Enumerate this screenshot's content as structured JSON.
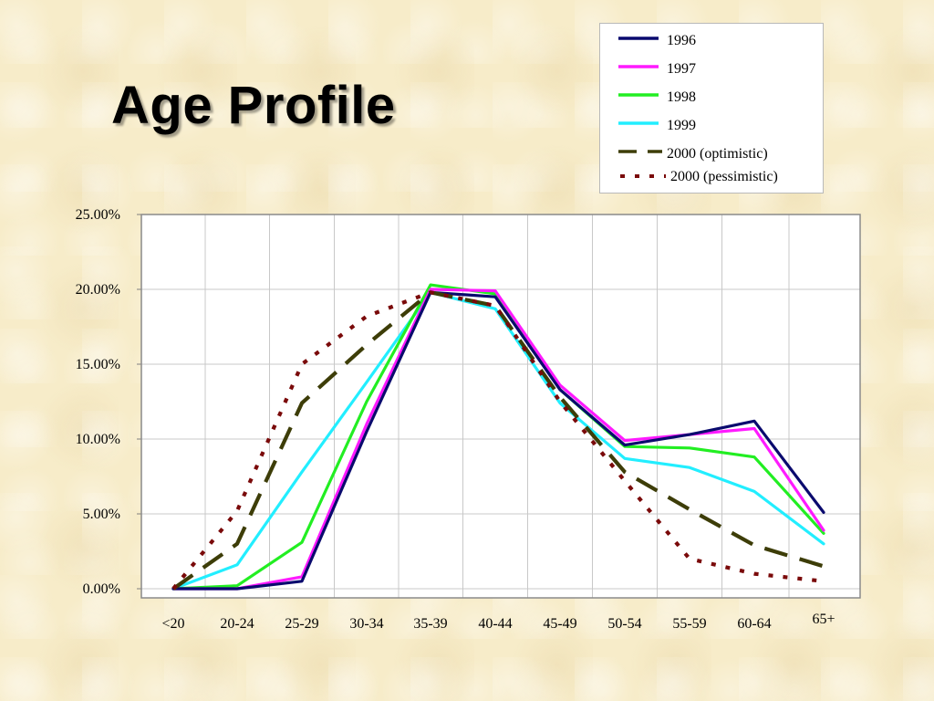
{
  "slide": {
    "title": "Age Profile"
  },
  "chart_data": {
    "type": "line",
    "categories": [
      "<20",
      "20-24",
      "25-29",
      "30-34",
      "35-39",
      "40-44",
      "45-49",
      "50-54",
      "55-59",
      "60-64",
      "65+"
    ],
    "y_ticks": [
      "0.00%",
      "5.00%",
      "10.00%",
      "15.00%",
      "20.00%",
      "25.00%"
    ],
    "ylim": [
      0,
      25
    ],
    "grid": true,
    "legend_position": "top-right",
    "series": [
      {
        "name": "1996",
        "color": "#0a0a6e",
        "dash": "solid",
        "values": [
          0.0,
          0.0,
          0.5,
          10.5,
          19.8,
          19.5,
          13.3,
          9.6,
          10.3,
          11.2,
          5.1
        ]
      },
      {
        "name": "1997",
        "color": "#ff1aff",
        "dash": "solid",
        "values": [
          0.0,
          0.0,
          0.8,
          11.0,
          20.0,
          19.9,
          13.6,
          9.9,
          10.3,
          10.7,
          3.9
        ]
      },
      {
        "name": "1998",
        "color": "#22ee22",
        "dash": "solid",
        "values": [
          0.0,
          0.2,
          3.1,
          12.5,
          20.3,
          19.7,
          13.3,
          9.5,
          9.4,
          8.8,
          3.7
        ]
      },
      {
        "name": "1999",
        "color": "#22eeff",
        "dash": "solid",
        "values": [
          0.0,
          1.6,
          7.8,
          13.8,
          19.8,
          18.7,
          12.4,
          8.7,
          8.1,
          6.5,
          3.0
        ]
      },
      {
        "name": "2000 (optimistic)",
        "color": "#3d3d08",
        "dash": "long",
        "values": [
          0.0,
          3.0,
          12.4,
          16.3,
          19.8,
          18.9,
          12.8,
          7.8,
          5.3,
          2.9,
          1.5
        ]
      },
      {
        "name": "2000 (pessimistic)",
        "color": "#7a0a0a",
        "dash": "dot",
        "values": [
          0.0,
          5.2,
          15.0,
          18.2,
          19.8,
          18.9,
          12.5,
          7.2,
          2.0,
          1.0,
          0.5
        ]
      }
    ]
  }
}
